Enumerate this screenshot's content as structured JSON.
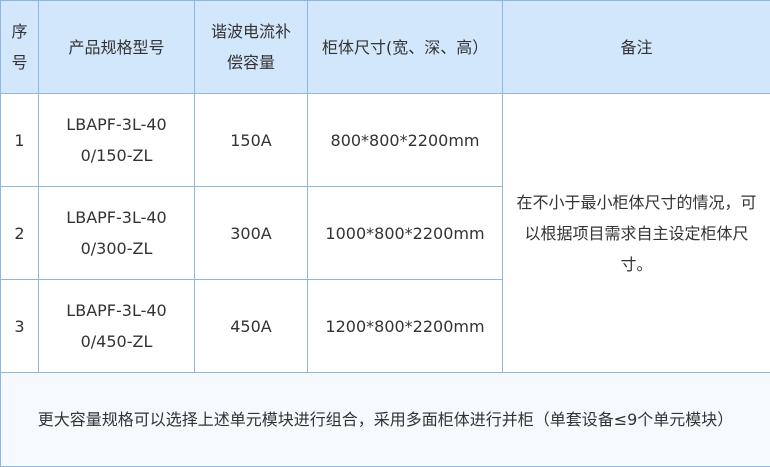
{
  "headers": [
    "序号",
    "产品规格型号",
    "谐波电流补偿容量",
    "柜体尺寸(宽、深、高）",
    "备注"
  ],
  "rows": [
    {
      "index": "1",
      "model": "LBAPF-3L-400/150-ZL",
      "capacity": "150A",
      "size": "800*800*2200mm"
    },
    {
      "index": "2",
      "model": "LBAPF-3L-400/300-ZL",
      "capacity": "300A",
      "size": "1000*800*2200mm"
    },
    {
      "index": "3",
      "model": "LBAPF-3L-400/450-ZL",
      "capacity": "450A",
      "size": "1200*800*2200mm"
    }
  ],
  "remark": "在不小于最小柜体尺寸的情况，可以根据项目需求自主设定柜体尺寸。",
  "footer": "更大容量规格可以选择上述单元模块进行组合，采用多面柜体进行并柜（单套设备≤9个单元模块）",
  "colors": {
    "header_bg": "#d3e7fc",
    "border": "#8fb6e0",
    "text": "#333333"
  }
}
